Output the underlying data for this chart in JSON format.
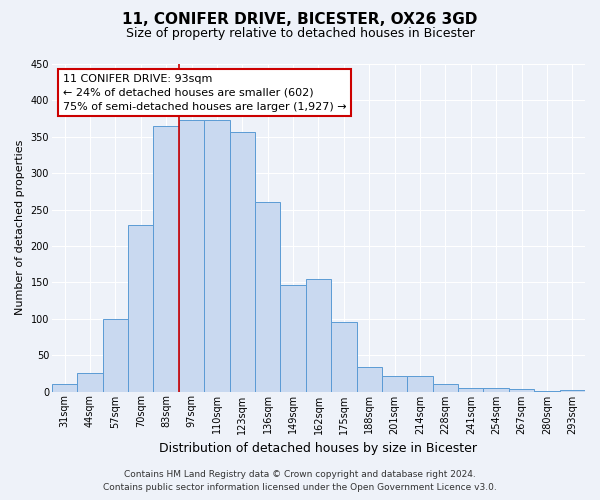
{
  "title": "11, CONIFER DRIVE, BICESTER, OX26 3GD",
  "subtitle": "Size of property relative to detached houses in Bicester",
  "xlabel": "Distribution of detached houses by size in Bicester",
  "ylabel": "Number of detached properties",
  "bar_labels": [
    "31sqm",
    "44sqm",
    "57sqm",
    "70sqm",
    "83sqm",
    "97sqm",
    "110sqm",
    "123sqm",
    "136sqm",
    "149sqm",
    "162sqm",
    "175sqm",
    "188sqm",
    "201sqm",
    "214sqm",
    "228sqm",
    "241sqm",
    "254sqm",
    "267sqm",
    "280sqm",
    "293sqm"
  ],
  "bar_values": [
    10,
    26,
    100,
    229,
    365,
    373,
    373,
    356,
    260,
    147,
    155,
    95,
    33,
    22,
    22,
    10,
    5,
    5,
    3,
    1,
    2
  ],
  "bar_color": "#c9d9f0",
  "bar_edge_color": "#5b9bd5",
  "ylim": [
    0,
    450
  ],
  "yticks": [
    0,
    50,
    100,
    150,
    200,
    250,
    300,
    350,
    400,
    450
  ],
  "vline_color": "#cc0000",
  "vline_x_index": 4.5,
  "annotation_title": "11 CONIFER DRIVE: 93sqm",
  "annotation_line1": "← 24% of detached houses are smaller (602)",
  "annotation_line2": "75% of semi-detached houses are larger (1,927) →",
  "annotation_box_color": "#ffffff",
  "annotation_box_edge": "#cc0000",
  "footer_line1": "Contains HM Land Registry data © Crown copyright and database right 2024.",
  "footer_line2": "Contains public sector information licensed under the Open Government Licence v3.0.",
  "background_color": "#eef2f9",
  "plot_bg_color": "#eef2f9",
  "grid_color": "#ffffff",
  "title_fontsize": 11,
  "subtitle_fontsize": 9,
  "ylabel_fontsize": 8,
  "xlabel_fontsize": 9,
  "tick_fontsize": 7,
  "footer_fontsize": 6.5,
  "annotation_fontsize": 8
}
